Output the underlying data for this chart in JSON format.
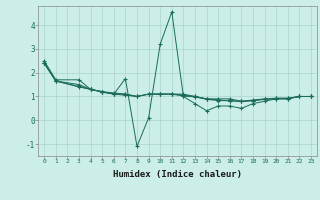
{
  "xlabel": "Humidex (Indice chaleur)",
  "ylabel": "",
  "background_color": "#cceee8",
  "line_color": "#1a6b5a",
  "grid_color": "#aad4cc",
  "xlim": [
    -0.5,
    23.5
  ],
  "ylim": [
    -1.5,
    4.8
  ],
  "yticks": [
    -1,
    0,
    1,
    2,
    3,
    4
  ],
  "xticks": [
    0,
    1,
    2,
    3,
    4,
    5,
    6,
    7,
    8,
    9,
    10,
    11,
    12,
    13,
    14,
    15,
    16,
    17,
    18,
    19,
    20,
    21,
    22,
    23
  ],
  "series": [
    {
      "x": [
        0,
        1,
        3,
        4,
        5,
        6,
        7,
        8,
        9,
        10,
        11,
        12,
        13,
        14,
        15,
        16,
        17,
        18,
        19,
        20,
        21,
        22,
        23
      ],
      "y": [
        2.5,
        1.7,
        1.7,
        1.3,
        1.2,
        1.1,
        1.75,
        -1.1,
        0.1,
        3.2,
        4.55,
        1.0,
        0.7,
        0.4,
        0.6,
        0.6,
        0.5,
        0.7,
        0.8,
        0.9,
        0.9,
        1.0,
        1.0
      ]
    },
    {
      "x": [
        0,
        1,
        3,
        4,
        5,
        6,
        7,
        8,
        9,
        10,
        11,
        12,
        13,
        14,
        15,
        16,
        17,
        18,
        19,
        20,
        21,
        22,
        23
      ],
      "y": [
        2.4,
        1.65,
        1.5,
        1.3,
        1.2,
        1.1,
        1.1,
        1.0,
        1.1,
        1.1,
        1.1,
        1.1,
        1.0,
        0.9,
        0.9,
        0.9,
        0.8,
        0.85,
        0.9,
        0.9,
        0.9,
        1.0,
        1.0
      ]
    },
    {
      "x": [
        0,
        1,
        3,
        4,
        5,
        6,
        7,
        8,
        9,
        10,
        11,
        12,
        13,
        14,
        15,
        16,
        17,
        18,
        19,
        20,
        21,
        22,
        23
      ],
      "y": [
        2.4,
        1.65,
        1.4,
        1.3,
        1.2,
        1.15,
        1.1,
        1.0,
        1.1,
        1.1,
        1.1,
        1.05,
        1.0,
        0.9,
        0.85,
        0.82,
        0.8,
        0.82,
        0.88,
        0.92,
        0.92,
        1.0,
        1.0
      ]
    },
    {
      "x": [
        0,
        1,
        3,
        4,
        5,
        6,
        7,
        8,
        9,
        10,
        11,
        12,
        13,
        14,
        15,
        16,
        17,
        18,
        19,
        20,
        21,
        22,
        23
      ],
      "y": [
        2.4,
        1.65,
        1.42,
        1.3,
        1.18,
        1.1,
        1.05,
        1.0,
        1.1,
        1.1,
        1.1,
        1.02,
        0.98,
        0.88,
        0.83,
        0.82,
        0.79,
        0.83,
        0.89,
        0.93,
        0.93,
        1.0,
        1.0
      ]
    }
  ]
}
